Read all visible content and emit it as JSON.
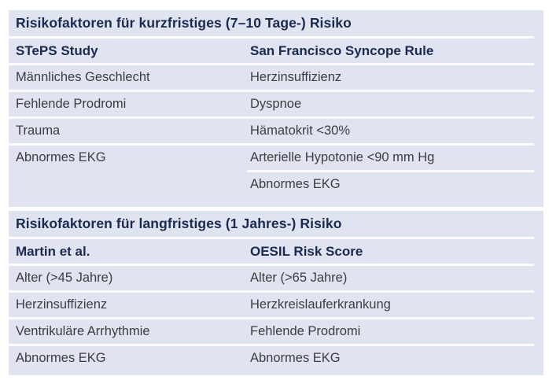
{
  "colors": {
    "panel_background": "#e0e3f0",
    "header_text": "#1b2a50",
    "body_text": "#3d3d40",
    "divider": "#fdfdfe",
    "page_background": "#ffffff"
  },
  "table": {
    "sections": [
      {
        "title": "Risikofaktoren für kurzfristiges (7–10 Tage-) Risiko",
        "columns": [
          "STePS Study",
          "San Francisco Syncope Rule"
        ],
        "rows": [
          [
            "Männliches Geschlecht",
            "Herzinsuffizienz"
          ],
          [
            "Fehlende Prodromi",
            "Dyspnoe"
          ],
          [
            "Trauma",
            "Hämatokrit <30%"
          ],
          [
            "Abnormes EKG",
            "Arterielle Hypotonie <90 mm Hg"
          ],
          [
            "",
            "Abnormes EKG"
          ]
        ]
      },
      {
        "title": "Risikofaktoren für langfristiges (1 Jahres-) Risiko",
        "columns": [
          "Martin et al.",
          "OESIL Risk Score"
        ],
        "rows": [
          [
            "Alter (>45 Jahre)",
            "Alter (>65 Jahre)"
          ],
          [
            "Herzinsuffizienz",
            "Herzkreislauferkrankung"
          ],
          [
            "Ventrikuläre Arrhythmie",
            "Fehlende Prodromi"
          ],
          [
            "Abnormes EKG",
            "Abnormes EKG"
          ]
        ]
      }
    ]
  }
}
